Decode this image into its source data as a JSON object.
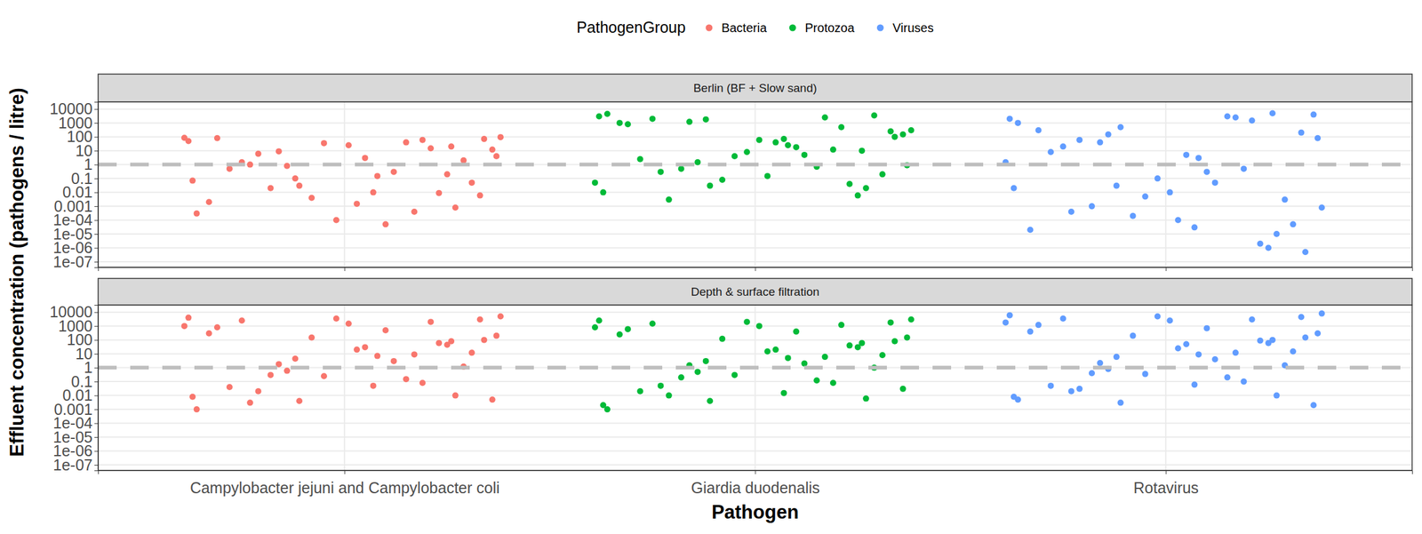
{
  "chart_data": {
    "type": "scatter",
    "legend_title": "PathogenGroup",
    "x_label": "Pathogen",
    "y_label": "Effluent concentration (pathogens / litre)",
    "log": "y",
    "grid": true,
    "legend": "top",
    "reference_line": 1,
    "xlim": [
      0.4,
      3.6
    ],
    "xticks": [
      {
        "value": 1,
        "label": "Campylobacter jejuni and Campylobacter coli"
      },
      {
        "value": 2,
        "label": "Giardia duodenalis"
      },
      {
        "value": 3,
        "label": "Rotavirus"
      }
    ],
    "ylim": [
      4e-08,
      33000
    ],
    "yticks": [
      {
        "value": 1e-07,
        "label": "1e-07"
      },
      {
        "value": 1e-06,
        "label": "1e-06"
      },
      {
        "value": 1e-05,
        "label": "1e-05"
      },
      {
        "value": 0.0001,
        "label": "1e-04"
      },
      0.001,
      0.01,
      0.1,
      1,
      10,
      100,
      1000,
      10000
    ],
    "series": [
      {
        "name": "Bacteria",
        "color": "#f8766d"
      },
      {
        "name": "Protozoa",
        "color": "#00ba38"
      },
      {
        "name": "Viruses",
        "color": "#619cff"
      }
    ],
    "panels": [
      {
        "title": "Berlin (BF + Slow sand)",
        "series": [
          {
            "x": [
              0.62,
              0.82,
              1.05,
              1.27,
              0.69,
              1.12,
              1.36,
              0.92,
              0.75,
              1.19,
              1.31,
              0.64,
              1.01,
              0.86,
              1.23,
              1.38,
              0.79,
              1.08,
              0.67,
              1.15,
              0.98,
              1.29,
              0.89,
              1.34,
              0.72,
              1.03,
              1.21,
              0.63,
              1.1,
              0.84,
              1.25,
              0.95,
              1.33,
              0.77,
              1.17,
              0.61,
              1.07,
              1.37,
              0.88,
              1.26
            ],
            "values": [
              50,
              0.02,
              3,
              0.0008,
              80,
              0.3,
              12,
              0.004,
              1.5,
              60,
              0.05,
              0.0003,
              25,
              0.8,
              0.009,
              95,
              6,
              0.15,
              0.002,
              40,
              0.0001,
              2,
              0.03,
              70,
              0.5,
              0.0015,
              15,
              0.07,
              5e-05,
              9,
              0.2,
              35,
              0.006,
              1,
              0.0004,
              85,
              0.01,
              4,
              0.1,
              20
            ]
          },
          {
            "x": [
              1.62,
              1.82,
              2.05,
              2.27,
              1.69,
              2.12,
              2.36,
              1.92,
              1.75,
              2.19,
              2.31,
              1.64,
              2.01,
              1.86,
              2.23,
              2.38,
              1.79,
              2.08,
              1.67,
              2.15,
              1.98,
              2.29,
              1.89,
              2.34,
              1.72,
              2.03,
              2.21,
              1.63,
              2.1,
              1.84,
              2.25,
              1.95,
              2.33,
              1.77,
              2.17,
              1.61,
              2.07,
              2.37,
              1.88,
              2.26
            ],
            "values": [
              3000,
              0.5,
              40,
              0.02,
              800,
              5,
              150,
              0.08,
              2000,
              12,
              0.2,
              4500,
              60,
              1.5,
              0.04,
              300,
              0.003,
              25,
              1000,
              0.7,
              8,
              3500,
              0.03,
              100,
              2.5,
              0.15,
              500,
              0.01,
              18,
              1200,
              0.006,
              4,
              250,
              0.3,
              2500,
              0.05,
              70,
              0.9,
              1800,
              10
            ]
          },
          {
            "x": [
              2.62,
              2.82,
              3.05,
              3.27,
              2.69,
              3.12,
              3.36,
              2.92,
              2.75,
              3.19,
              3.31,
              2.64,
              3.01,
              2.86,
              3.23,
              3.38,
              2.79,
              3.08,
              2.67,
              3.15,
              2.98,
              3.29,
              2.89,
              3.34,
              2.72,
              3.03,
              3.21,
              2.63,
              3.1,
              2.84,
              3.25,
              2.95,
              3.33,
              2.77,
              3.17,
              2.61,
              3.07,
              3.37,
              2.88,
              3.26
            ],
            "values": [
              2000,
              0.001,
              5,
              1e-05,
              300,
              0.05,
              4000,
              0.0002,
              20,
              0.5,
              5e-05,
              1000,
              0.01,
              150,
              2e-06,
              0.0008,
              60,
              3,
              2e-05,
              3000,
              0.1,
              0.003,
              500,
              5e-07,
              8,
              0.0001,
              1500,
              0.02,
              0.3,
              40,
              1e-06,
              0.005,
              200,
              0.0004,
              2500,
              1.5,
              3e-05,
              80,
              0.03,
              5000
            ]
          }
        ]
      },
      {
        "title": "Depth & surface filtration",
        "series": [
          {
            "x": [
              0.62,
              0.82,
              1.05,
              1.27,
              0.69,
              1.12,
              1.36,
              0.92,
              0.75,
              1.19,
              1.31,
              0.64,
              1.01,
              0.86,
              1.23,
              1.38,
              0.79,
              1.08,
              0.67,
              1.15,
              0.98,
              1.29,
              0.89,
              1.34,
              0.72,
              1.03,
              1.21,
              0.63,
              1.1,
              0.84,
              1.25,
              0.95,
              1.33,
              0.77,
              1.17,
              0.61,
              1.07,
              1.37,
              0.88,
              1.26
            ],
            "values": [
              4000,
              0.3,
              30,
              0.01,
              800,
              3,
              0.005,
              150,
              2500,
              0.08,
              12,
              0.001,
              1500,
              0.6,
              60,
              5000,
              0.02,
              7,
              300,
              0.15,
              3500,
              1.2,
              0.004,
              100,
              0.04,
              20,
              2000,
              0.008,
              500,
              1.8,
              45,
              0.25,
              3000,
              0.003,
              9,
              1000,
              0.05,
              200,
              4.5,
              80
            ]
          },
          {
            "x": [
              1.62,
              1.82,
              2.05,
              2.27,
              1.69,
              2.12,
              2.36,
              1.92,
              1.75,
              2.19,
              2.31,
              1.64,
              2.01,
              1.86,
              2.23,
              2.38,
              1.79,
              2.08,
              1.67,
              2.15,
              1.98,
              2.29,
              1.89,
              2.34,
              1.72,
              2.03,
              2.21,
              1.63,
              2.1,
              1.84,
              2.25,
              1.95,
              2.33,
              1.77,
              2.17,
              1.61,
              2.07,
              2.37,
              1.88,
              2.26
            ],
            "values": [
              2500,
              0.2,
              20,
              0.006,
              600,
              2,
              0.03,
              120,
              1500,
              0.08,
              8,
              0.001,
              1000,
              0.5,
              40,
              3000,
              0.01,
              5,
              250,
              0.12,
              2000,
              1,
              0.004,
              80,
              0.02,
              15,
              1200,
              0.002,
              400,
              1.5,
              30,
              0.3,
              1800,
              0.05,
              6,
              800,
              0.015,
              150,
              3,
              60
            ]
          },
          {
            "x": [
              2.62,
              2.82,
              3.05,
              3.27,
              2.69,
              3.12,
              3.36,
              2.92,
              2.75,
              3.19,
              3.31,
              2.64,
              3.01,
              2.86,
              3.23,
              3.38,
              2.79,
              3.08,
              2.67,
              3.15,
              2.98,
              3.29,
              2.89,
              3.34,
              2.72,
              3.03,
              3.21,
              2.63,
              3.1,
              2.84,
              3.25,
              2.95,
              3.33,
              2.77,
              3.17,
              2.61,
              3.07,
              3.37,
              2.88,
              3.26
            ],
            "values": [
              6000,
              0.4,
              50,
              0.01,
              1200,
              4,
              0.002,
              200,
              3500,
              0.1,
              15,
              0.005,
              2500,
              0.8,
              90,
              8000,
              0.03,
              9,
              400,
              0.2,
              5000,
              1.5,
              0.003,
              150,
              0.05,
              25,
              3000,
              0.008,
              700,
              2.2,
              60,
              0.35,
              4500,
              0.02,
              12,
              1800,
              0.06,
              300,
              6,
              100
            ]
          }
        ]
      }
    ]
  }
}
